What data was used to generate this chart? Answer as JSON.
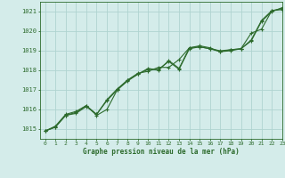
{
  "bg_color": "#d4ecea",
  "grid_color": "#b0d4d0",
  "line_color": "#2d6b2d",
  "xlim": [
    -0.5,
    23
  ],
  "ylim": [
    1014.5,
    1021.5
  ],
  "yticks": [
    1015,
    1016,
    1017,
    1018,
    1019,
    1020,
    1021
  ],
  "xticks": [
    0,
    1,
    2,
    3,
    4,
    5,
    6,
    7,
    8,
    9,
    10,
    11,
    12,
    13,
    14,
    15,
    16,
    17,
    18,
    19,
    20,
    21,
    22,
    23
  ],
  "xlabel": "Graphe pression niveau de la mer (hPa)",
  "series1_x": [
    0,
    1,
    2,
    3,
    4,
    5,
    6,
    7,
    8,
    9,
    10,
    11,
    12,
    13,
    14,
    15,
    16,
    17,
    18,
    19,
    20,
    21,
    22,
    23
  ],
  "series1_y": [
    1014.9,
    1015.1,
    1015.7,
    1015.8,
    1016.15,
    1015.75,
    1016.45,
    1017.0,
    1017.45,
    1017.8,
    1018.05,
    1018.05,
    1018.45,
    1018.05,
    1019.1,
    1019.2,
    1019.1,
    1018.95,
    1019.0,
    1019.1,
    1019.9,
    1020.1,
    1021.05,
    1021.1
  ],
  "series2_x": [
    0,
    1,
    2,
    3,
    4,
    5,
    6,
    7,
    8,
    9,
    10,
    11,
    12,
    13,
    14,
    15,
    16,
    17,
    18,
    19,
    20,
    21,
    22,
    23
  ],
  "series2_y": [
    1014.9,
    1015.1,
    1015.7,
    1015.85,
    1016.2,
    1015.7,
    1016.0,
    1017.0,
    1017.5,
    1017.8,
    1018.1,
    1018.0,
    1018.5,
    1018.1,
    1019.15,
    1019.2,
    1019.1,
    1019.0,
    1019.05,
    1019.1,
    1019.5,
    1020.5,
    1021.0,
    1021.2
  ],
  "series3_x": [
    0,
    1,
    2,
    3,
    4,
    5,
    6,
    7,
    8,
    9,
    10,
    11,
    12,
    13,
    14,
    15,
    16,
    17,
    18,
    19,
    20,
    21,
    22,
    23
  ],
  "series3_y": [
    1014.9,
    1015.15,
    1015.75,
    1015.9,
    1016.2,
    1015.75,
    1016.5,
    1017.05,
    1017.5,
    1017.85,
    1017.95,
    1018.15,
    1018.15,
    1018.55,
    1019.15,
    1019.25,
    1019.15,
    1018.95,
    1019.05,
    1019.1,
    1019.55,
    1020.55,
    1021.05,
    1021.15
  ]
}
